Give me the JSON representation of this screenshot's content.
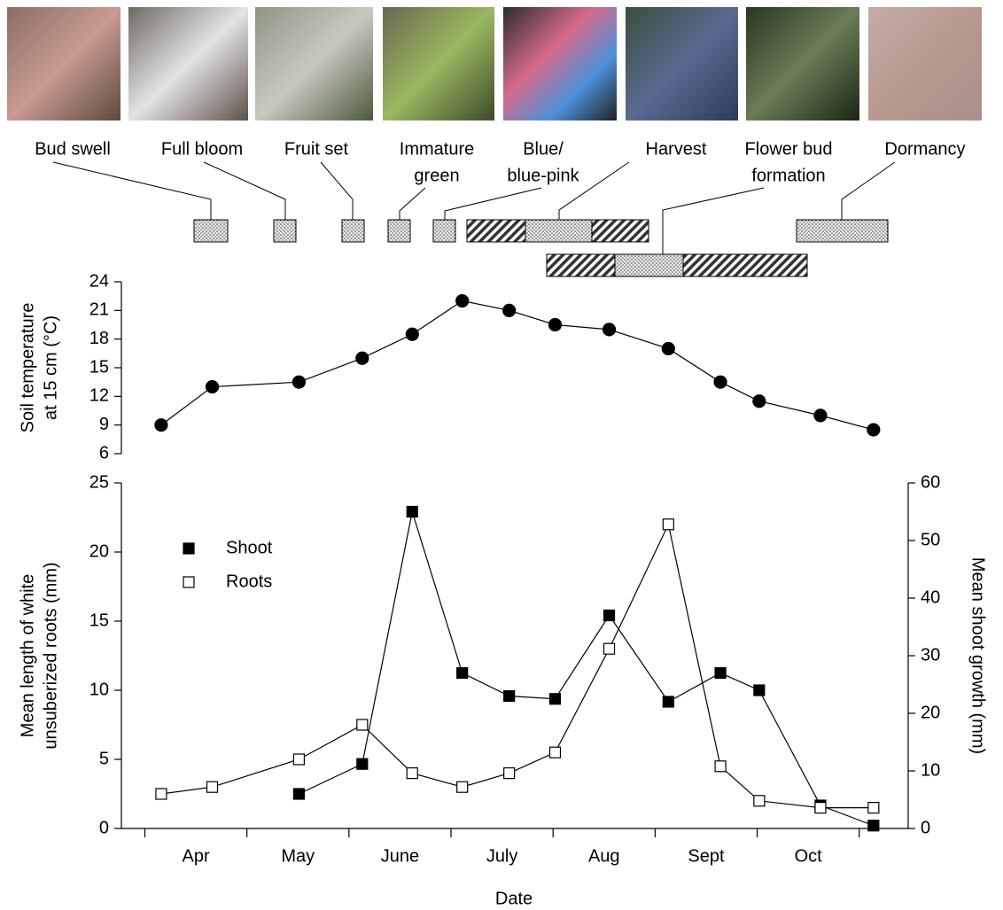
{
  "stages": [
    {
      "label": [
        "Bud swell"
      ]
    },
    {
      "label": [
        "Full bloom"
      ]
    },
    {
      "label": [
        "Fruit set"
      ]
    },
    {
      "label": [
        "Immature",
        "green"
      ]
    },
    {
      "label": [
        "Blue/",
        "blue-pink"
      ]
    },
    {
      "label": [
        "Harvest"
      ]
    },
    {
      "label": [
        "Flower bud",
        "formation"
      ]
    },
    {
      "label": [
        "Dormancy"
      ]
    }
  ],
  "chart_data": [
    {
      "type": "line",
      "y_label": [
        "Soil temperature",
        "at 15 cm (°C)"
      ],
      "x": [
        0.16,
        0.66,
        1.51,
        2.13,
        2.62,
        3.11,
        3.57,
        4.02,
        4.55,
        5.13,
        5.64,
        6.02,
        6.62,
        7.14
      ],
      "values": [
        9.0,
        13.0,
        13.5,
        16.0,
        18.5,
        22.0,
        21.0,
        19.5,
        19.0,
        17.0,
        13.5,
        11.5,
        10.0,
        8.5
      ],
      "color": "#000000",
      "marker": "circle",
      "xlim": [
        -0.23,
        7.48
      ],
      "ylim": [
        6,
        24
      ],
      "yticks": [
        6,
        9,
        12,
        15,
        18,
        21,
        24
      ]
    },
    {
      "type": "line",
      "x_label": "Date",
      "y_label": [
        "Mean length of white",
        "unsuberized roots (mm)"
      ],
      "y2_label": "Mean shoot growth (mm)",
      "months": [
        "Apr",
        "May",
        "June",
        "July",
        "Aug",
        "Sept",
        "Oct"
      ],
      "x": [
        0.16,
        0.66,
        1.51,
        2.13,
        2.62,
        3.11,
        3.57,
        4.02,
        4.55,
        5.13,
        5.64,
        6.02,
        6.62,
        7.14
      ],
      "series": [
        {
          "name": "Shoot",
          "color": "#000000",
          "marker_fill": "#000000",
          "axis": "y2",
          "values": [
            null,
            null,
            6.0,
            11.2,
            55.0,
            27.0,
            23.0,
            22.5,
            37.0,
            22.0,
            27.0,
            24.0,
            4.0,
            0.5
          ]
        },
        {
          "name": "Roots",
          "color": "#000000",
          "marker_fill": "#ffffff",
          "values": [
            2.5,
            3.0,
            5.0,
            7.5,
            4.0,
            3.0,
            4.0,
            5.5,
            13.0,
            22.0,
            4.5,
            2.0,
            1.5,
            1.5
          ]
        }
      ],
      "xlim": [
        -0.23,
        7.48
      ],
      "xticks": [
        0,
        1,
        2,
        3,
        4,
        5,
        6,
        7
      ],
      "ylim": [
        0,
        25
      ],
      "yticks": [
        0,
        5,
        10,
        15,
        20,
        25
      ],
      "y2lim": [
        0,
        60
      ],
      "y2ticks": [
        0,
        10,
        20,
        30,
        40,
        50,
        60
      ],
      "legend": "upper left"
    }
  ]
}
